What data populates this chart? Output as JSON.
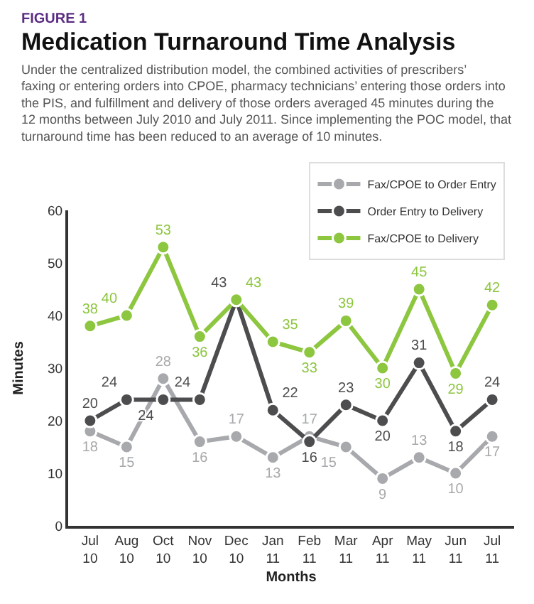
{
  "chart_data": {
    "type": "line",
    "title": "Medication Turnaround Time Analysis",
    "subtitle": "Under the centralized distribution model, the combined activities of prescribers’ faxing or entering orders into CPOE, pharmacy technicians’ entering those orders into the PIS, and fulfillment and delivery of those orders averaged 45 minutes during the 12 months between July 2010 and July 2011. Since implementing the POC model, that turnaround time has been reduced to an average of 10 minutes.",
    "annotations": [
      "FIGURE 1"
    ],
    "xlabel": "Months",
    "ylabel": "Minutes",
    "categories": [
      "Jul\n10",
      "Aug\n10",
      "Oct\n10",
      "Nov\n10",
      "Dec\n10",
      "Jan\n11",
      "Feb\n11",
      "Mar\n11",
      "Apr\n11",
      "May\n11",
      "Jun\n11",
      "Jul\n11"
    ],
    "series": [
      {
        "name": "Fax/CPOE to Order Entry",
        "color": "#a7a9ac",
        "values": [
          18,
          15,
          28,
          16,
          17,
          13,
          17,
          15,
          9,
          13,
          10,
          17
        ]
      },
      {
        "name": "Order Entry to Delivery",
        "color": "#4d4d4f",
        "values": [
          20,
          24,
          24,
          24,
          43,
          22,
          16,
          23,
          20,
          31,
          18,
          24
        ]
      },
      {
        "name": "Fax/CPOE to Delivery",
        "color": "#8dc63f",
        "values": [
          38,
          40,
          53,
          36,
          43,
          35,
          33,
          39,
          30,
          45,
          29,
          42
        ]
      }
    ],
    "ylim": [
      0,
      60
    ],
    "yticks": [
      0,
      10,
      20,
      30,
      40,
      50,
      60
    ],
    "data_labels": true,
    "legend": "top right",
    "marker": "circle",
    "line_style": "solid"
  }
}
